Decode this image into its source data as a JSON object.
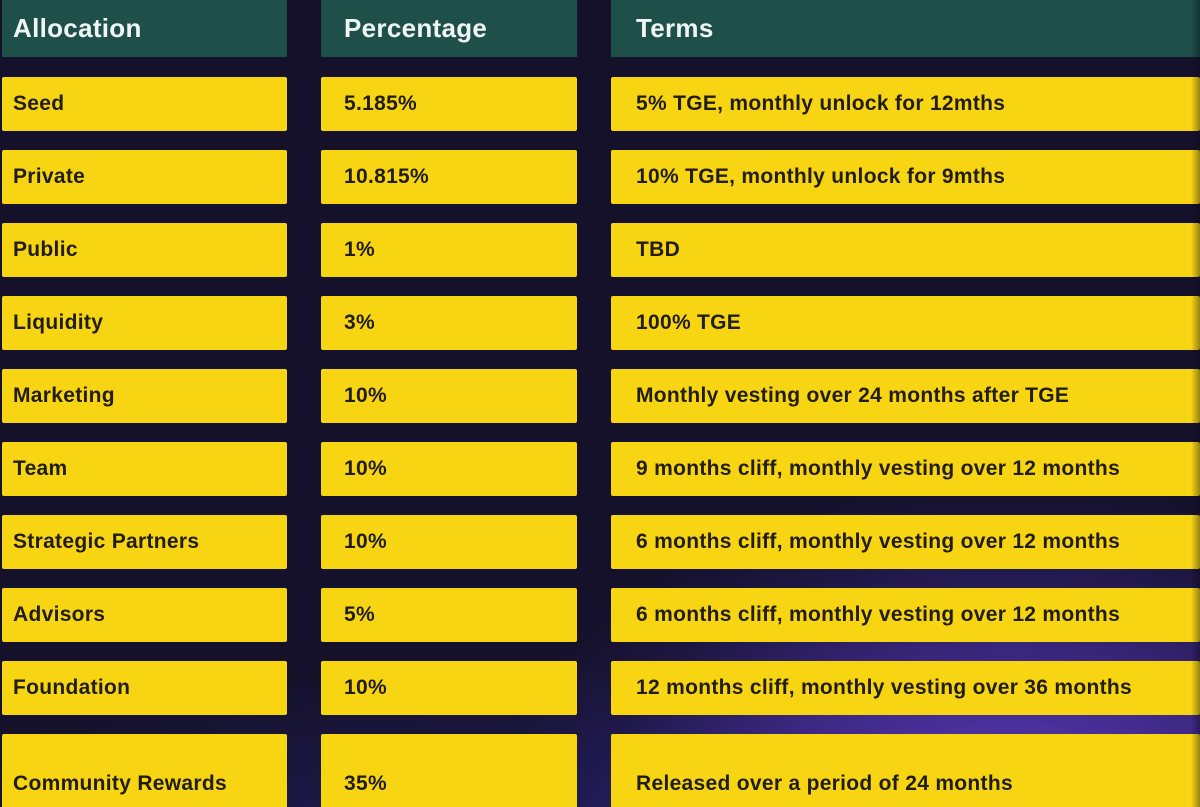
{
  "chart_data": {
    "type": "table",
    "columns": [
      "Allocation",
      "Percentage",
      "Terms"
    ],
    "rows": [
      [
        "Seed",
        "5.185%",
        "5% TGE, monthly unlock for 12mths"
      ],
      [
        "Private",
        "10.815%",
        "10% TGE, monthly unlock for 9mths"
      ],
      [
        "Public",
        "1%",
        "TBD"
      ],
      [
        "Liquidity",
        "3%",
        "100% TGE"
      ],
      [
        "Marketing",
        "10%",
        "Monthly vesting over 24 months after TGE"
      ],
      [
        "Team",
        "10%",
        "9 months cliff, monthly vesting over 12 months"
      ],
      [
        "Strategic Partners",
        "10%",
        "6 months cliff, monthly vesting over 12 months"
      ],
      [
        "Advisors",
        "5%",
        "6 months cliff, monthly vesting over 12 months"
      ],
      [
        "Foundation",
        "10%",
        "12 months cliff, monthly vesting over 36 months"
      ],
      [
        "Community Rewards",
        "35%",
        "Released over a period of 24 months"
      ]
    ],
    "legend_position": "none",
    "grid": false
  },
  "colors": {
    "header_background": "#1f4f49",
    "header_text": "#eff6f4",
    "cell_background": "#f7d513",
    "cell_text": "#211d10",
    "page_background": "#15112a",
    "glow_purple": "#4c31a4",
    "glow_blue": "#26287d"
  }
}
